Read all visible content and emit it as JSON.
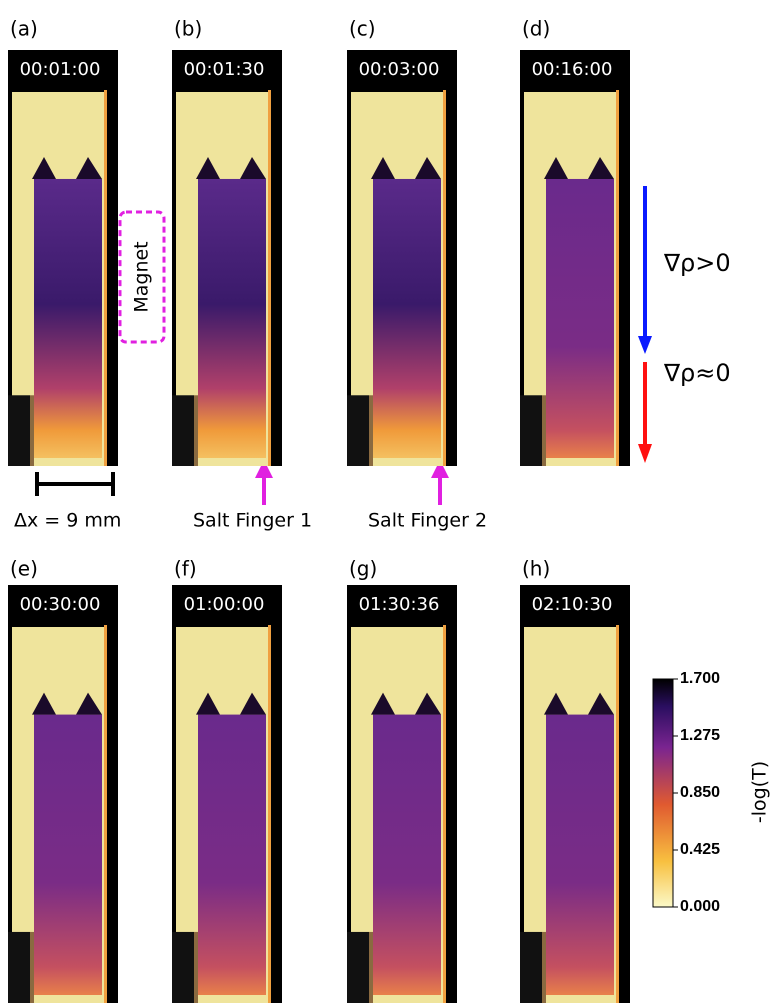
{
  "figure": {
    "panels": [
      {
        "label": "(a)",
        "time": "00:01:00"
      },
      {
        "label": "(b)",
        "time": "00:01:30"
      },
      {
        "label": "(c)",
        "time": "00:03:00"
      },
      {
        "label": "(d)",
        "time": "00:16:00"
      },
      {
        "label": "(e)",
        "time": "00:30:00"
      },
      {
        "label": "(f)",
        "time": "01:00:00"
      },
      {
        "label": "(g)",
        "time": "01:30:36"
      },
      {
        "label": "(h)",
        "time": "02:10:30"
      }
    ],
    "annotations": {
      "magnet": "Magnet",
      "scale": "Δx = 9 mm",
      "salt_finger_1": "Salt Finger 1",
      "salt_finger_2": "Salt Finger 2",
      "gradient_positive": "∇ρ>0",
      "gradient_zero": "∇ρ≈0"
    },
    "colorbar": {
      "label": "-log(T)",
      "lim": [
        0,
        1.7
      ],
      "ticks": [
        {
          "value": 1.7,
          "label": "1.700"
        },
        {
          "value": 1.275,
          "label": "1.275"
        },
        {
          "value": 0.85,
          "label": "0.850"
        },
        {
          "value": 0.425,
          "label": "0.425"
        },
        {
          "value": 0,
          "label": "0.000"
        }
      ]
    }
  }
}
